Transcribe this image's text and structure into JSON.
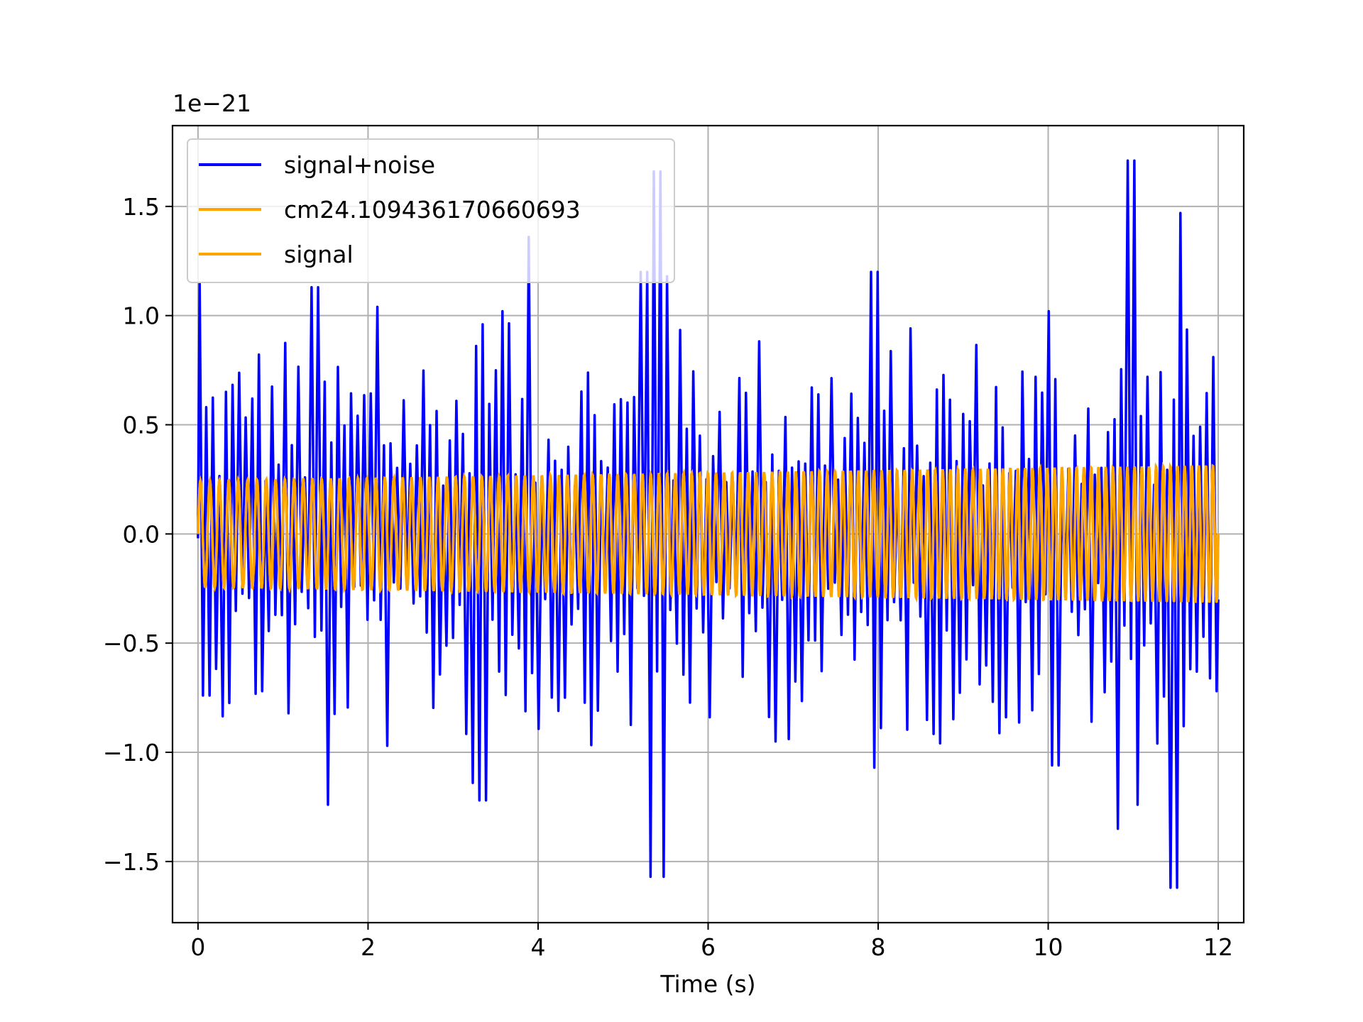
{
  "chart_data": {
    "type": "line",
    "xlabel": "Time (s)",
    "ylabel": "",
    "y_offset_label": "1e−21",
    "xlim": [
      -0.3,
      12.3
    ],
    "ylim": [
      -1.78,
      1.87
    ],
    "x_ticks": [
      0,
      2,
      4,
      6,
      8,
      10,
      12
    ],
    "x_tick_labels": [
      "0",
      "2",
      "4",
      "6",
      "8",
      "10",
      "12"
    ],
    "y_ticks": [
      -1.5,
      -1.0,
      -0.5,
      0.0,
      0.5,
      1.0,
      1.5
    ],
    "y_tick_labels": [
      "−1.5",
      "−1.0",
      "−0.5",
      "0.0",
      "0.5",
      "1.0",
      "1.5"
    ],
    "grid": true,
    "legend_position": "upper-left",
    "series": [
      {
        "name": "signal+noise",
        "color": "#0000ff",
        "kind": "noisy-oscillation",
        "x_range": [
          0,
          12
        ],
        "cycles": 155,
        "peaks": [
          {
            "x": 0.02,
            "y": 1.15
          },
          {
            "x": 0.1,
            "y": -0.74
          },
          {
            "x": 0.62,
            "y": 0.62
          },
          {
            "x": 0.78,
            "y": -0.72
          },
          {
            "x": 1.32,
            "y": 1.1
          },
          {
            "x": 1.38,
            "y": 1.13
          },
          {
            "x": 1.55,
            "y": -1.24
          },
          {
            "x": 2.13,
            "y": 1.04
          },
          {
            "x": 2.22,
            "y": -0.97
          },
          {
            "x": 3.22,
            "y": -1.14
          },
          {
            "x": 3.32,
            "y": 0.96
          },
          {
            "x": 3.35,
            "y": -1.22
          },
          {
            "x": 3.92,
            "y": 1.36
          },
          {
            "x": 3.55,
            "y": 1.02
          },
          {
            "x": 5.25,
            "y": 1.2
          },
          {
            "x": 5.32,
            "y": -1.57
          },
          {
            "x": 5.4,
            "y": 1.66
          },
          {
            "x": 5.45,
            "y": -1.57
          },
          {
            "x": 5.5,
            "y": 1.18
          },
          {
            "x": 7.95,
            "y": 1.2
          },
          {
            "x": 7.95,
            "y": -1.07
          },
          {
            "x": 10.0,
            "y": 1.02
          },
          {
            "x": 10.08,
            "y": -1.06
          },
          {
            "x": 10.85,
            "y": -1.35
          },
          {
            "x": 10.98,
            "y": 1.71
          },
          {
            "x": 11.05,
            "y": -1.24
          },
          {
            "x": 11.48,
            "y": -1.62
          },
          {
            "x": 11.55,
            "y": 1.47
          },
          {
            "x": 11.62,
            "y": -0.88
          },
          {
            "x": 11.95,
            "y": 0.81
          },
          {
            "x": 11.98,
            "y": -0.72
          }
        ]
      },
      {
        "name": "cm24.109436170660693",
        "color": "#ffa500",
        "kind": "chirp",
        "x_range": [
          0,
          12
        ],
        "amplitude_start": 0.245,
        "amplitude_end": 0.315,
        "cycles": 126
      },
      {
        "name": "signal",
        "color": "#ffa500",
        "kind": "chirp",
        "x_range": [
          0,
          12
        ],
        "amplitude_start": 0.245,
        "amplitude_end": 0.315,
        "cycles": 126
      }
    ]
  }
}
